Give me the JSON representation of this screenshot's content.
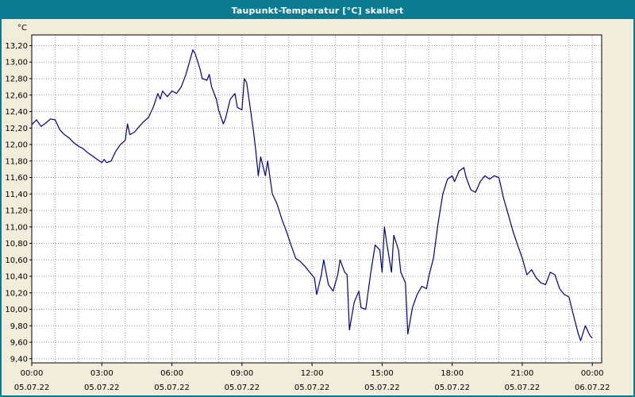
{
  "title_bar": {
    "text": "Taupunkt-Temperatur [°C] skaliert",
    "bg": "#0c7b91",
    "fg": "#ffffff"
  },
  "page": {
    "bg": "#f2edda",
    "border": "#0c7b91"
  },
  "chart_data": {
    "type": "line",
    "title": "Taupunkt-Temperatur [°C] skaliert",
    "y_unit": "°C",
    "ylim": [
      9.4,
      13.2
    ],
    "y_step": 0.2,
    "y_tick_labels": [
      "13,20",
      "13,00",
      "12,80",
      "12,60",
      "12,40",
      "12,20",
      "12,00",
      "11,80",
      "11,60",
      "11,40",
      "11,20",
      "11,00",
      "10,80",
      "10,60",
      "10,40",
      "10,20",
      "10,00",
      "9,80",
      "9,60",
      "9,40"
    ],
    "x_range_hours": [
      0,
      24
    ],
    "x_major_step_h": 3,
    "x_minor_step_h": 1,
    "x_tick_labels": [
      "00:00",
      "03:00",
      "06:00",
      "09:00",
      "12:00",
      "15:00",
      "18:00",
      "21:00",
      "00:00"
    ],
    "x_date_labels": [
      "05.07.22",
      "05.07.22",
      "05.07.22",
      "05.07.22",
      "05.07.22",
      "05.07.22",
      "05.07.22",
      "05.07.22",
      "06.07.22"
    ],
    "grid": true,
    "legend": "none",
    "line_color": "#00008b",
    "series": [
      {
        "name": "Taupunkt-Temperatur",
        "points": [
          [
            0,
            12.24
          ],
          [
            0.2,
            12.3
          ],
          [
            0.4,
            12.22
          ],
          [
            0.6,
            12.26
          ],
          [
            0.8,
            12.31
          ],
          [
            1.0,
            12.3
          ],
          [
            1.2,
            12.18
          ],
          [
            1.4,
            12.12
          ],
          [
            1.6,
            12.08
          ],
          [
            1.8,
            12.02
          ],
          [
            2.0,
            11.98
          ],
          [
            2.2,
            11.95
          ],
          [
            2.4,
            11.9
          ],
          [
            2.6,
            11.86
          ],
          [
            2.8,
            11.82
          ],
          [
            3.0,
            11.78
          ],
          [
            3.1,
            11.82
          ],
          [
            3.2,
            11.78
          ],
          [
            3.4,
            11.8
          ],
          [
            3.6,
            11.92
          ],
          [
            3.8,
            12.0
          ],
          [
            4.0,
            12.05
          ],
          [
            4.1,
            12.25
          ],
          [
            4.2,
            12.12
          ],
          [
            4.4,
            12.15
          ],
          [
            4.6,
            12.22
          ],
          [
            4.8,
            12.28
          ],
          [
            5.0,
            12.33
          ],
          [
            5.2,
            12.45
          ],
          [
            5.4,
            12.62
          ],
          [
            5.5,
            12.55
          ],
          [
            5.6,
            12.65
          ],
          [
            5.8,
            12.58
          ],
          [
            6.0,
            12.65
          ],
          [
            6.2,
            12.62
          ],
          [
            6.4,
            12.7
          ],
          [
            6.6,
            12.85
          ],
          [
            6.8,
            13.05
          ],
          [
            6.9,
            13.15
          ],
          [
            7.0,
            13.1
          ],
          [
            7.2,
            12.92
          ],
          [
            7.3,
            12.8
          ],
          [
            7.5,
            12.78
          ],
          [
            7.6,
            12.85
          ],
          [
            7.7,
            12.7
          ],
          [
            7.9,
            12.55
          ],
          [
            8.0,
            12.42
          ],
          [
            8.2,
            12.25
          ],
          [
            8.3,
            12.32
          ],
          [
            8.5,
            12.55
          ],
          [
            8.7,
            12.62
          ],
          [
            8.8,
            12.45
          ],
          [
            9.0,
            12.42
          ],
          [
            9.1,
            12.8
          ],
          [
            9.2,
            12.75
          ],
          [
            9.3,
            12.55
          ],
          [
            9.5,
            12.15
          ],
          [
            9.6,
            11.9
          ],
          [
            9.7,
            11.62
          ],
          [
            9.8,
            11.85
          ],
          [
            10.0,
            11.62
          ],
          [
            10.1,
            11.8
          ],
          [
            10.3,
            11.4
          ],
          [
            10.5,
            11.28
          ],
          [
            10.7,
            11.1
          ],
          [
            10.9,
            10.95
          ],
          [
            11.1,
            10.78
          ],
          [
            11.3,
            10.62
          ],
          [
            11.5,
            10.58
          ],
          [
            11.7,
            10.52
          ],
          [
            11.9,
            10.45
          ],
          [
            12.1,
            10.38
          ],
          [
            12.2,
            10.18
          ],
          [
            12.4,
            10.42
          ],
          [
            12.5,
            10.6
          ],
          [
            12.7,
            10.3
          ],
          [
            12.9,
            10.22
          ],
          [
            13.1,
            10.42
          ],
          [
            13.2,
            10.6
          ],
          [
            13.4,
            10.45
          ],
          [
            13.5,
            10.42
          ],
          [
            13.6,
            9.75
          ],
          [
            13.8,
            10.08
          ],
          [
            14.0,
            10.22
          ],
          [
            14.1,
            10.02
          ],
          [
            14.3,
            10.0
          ],
          [
            14.5,
            10.42
          ],
          [
            14.7,
            10.78
          ],
          [
            14.9,
            10.72
          ],
          [
            15.0,
            10.45
          ],
          [
            15.1,
            11.0
          ],
          [
            15.2,
            10.8
          ],
          [
            15.4,
            10.45
          ],
          [
            15.5,
            10.9
          ],
          [
            15.7,
            10.72
          ],
          [
            15.8,
            10.45
          ],
          [
            16.0,
            10.32
          ],
          [
            16.1,
            9.7
          ],
          [
            16.3,
            10.02
          ],
          [
            16.5,
            10.18
          ],
          [
            16.7,
            10.28
          ],
          [
            16.9,
            10.25
          ],
          [
            17.0,
            10.4
          ],
          [
            17.2,
            10.62
          ],
          [
            17.4,
            11.05
          ],
          [
            17.6,
            11.4
          ],
          [
            17.8,
            11.58
          ],
          [
            18.0,
            11.62
          ],
          [
            18.1,
            11.55
          ],
          [
            18.3,
            11.68
          ],
          [
            18.5,
            11.72
          ],
          [
            18.6,
            11.6
          ],
          [
            18.8,
            11.45
          ],
          [
            19.0,
            11.42
          ],
          [
            19.2,
            11.55
          ],
          [
            19.4,
            11.62
          ],
          [
            19.6,
            11.58
          ],
          [
            19.8,
            11.62
          ],
          [
            20.0,
            11.6
          ],
          [
            20.2,
            11.35
          ],
          [
            20.4,
            11.15
          ],
          [
            20.6,
            10.95
          ],
          [
            20.8,
            10.78
          ],
          [
            21.0,
            10.62
          ],
          [
            21.2,
            10.42
          ],
          [
            21.4,
            10.48
          ],
          [
            21.6,
            10.38
          ],
          [
            21.8,
            10.32
          ],
          [
            22.0,
            10.3
          ],
          [
            22.2,
            10.45
          ],
          [
            22.4,
            10.42
          ],
          [
            22.6,
            10.25
          ],
          [
            22.8,
            10.18
          ],
          [
            23.0,
            10.15
          ],
          [
            23.2,
            9.92
          ],
          [
            23.4,
            9.7
          ],
          [
            23.5,
            9.62
          ],
          [
            23.7,
            9.8
          ],
          [
            23.9,
            9.68
          ],
          [
            24.0,
            9.65
          ]
        ]
      }
    ]
  }
}
